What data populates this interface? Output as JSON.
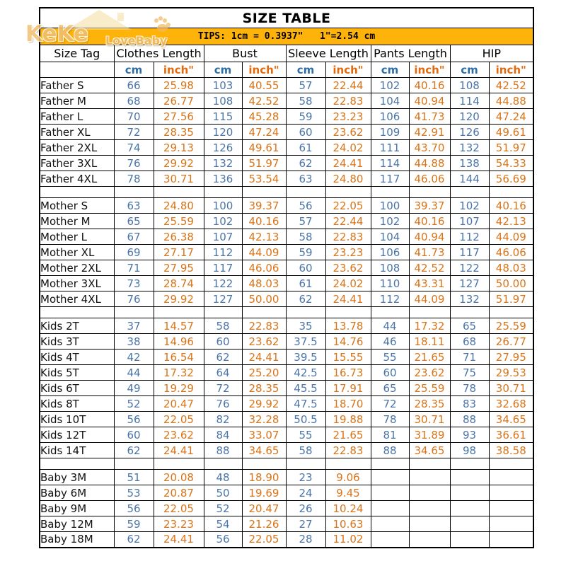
{
  "title": "SIZE TABLE",
  "tips": "TIPS: 1cm = 0.3937\"   1\"=2.54 cm",
  "watermark": {
    "brand_top": "KeKe",
    "brand_bottom": "LoveBaby"
  },
  "colors": {
    "banner_yellow": "#FEB30A",
    "cm_header_blue": "#2E6DA4",
    "cm_value_blue": "#4A74A8",
    "inch_header_orange": "#E2690D",
    "inch_value_orange": "#D97418",
    "border_black": "#000000",
    "watermark_tan": "#F0B85F"
  },
  "columns": {
    "size_tag": "Size Tag",
    "unit_cm": "cm",
    "unit_inch": "inch\"",
    "groups": [
      {
        "label": "Clothes Length"
      },
      {
        "label": "Bust"
      },
      {
        "label": "Sleeve Length"
      },
      {
        "label": "Pants Length"
      },
      {
        "label": "HIP"
      }
    ]
  },
  "sections": [
    {
      "name": "Father",
      "rows": [
        {
          "tag": "Father S",
          "values": [
            "66",
            "25.98",
            "103",
            "40.55",
            "57",
            "22.44",
            "102",
            "40.16",
            "108",
            "42.52"
          ]
        },
        {
          "tag": "Father M",
          "values": [
            "68",
            "26.77",
            "108",
            "42.52",
            "58",
            "22.83",
            "104",
            "40.94",
            "114",
            "44.88"
          ]
        },
        {
          "tag": "Father L",
          "values": [
            "70",
            "27.56",
            "115",
            "45.28",
            "59",
            "23.23",
            "106",
            "41.73",
            "120",
            "47.24"
          ]
        },
        {
          "tag": "Father XL",
          "values": [
            "72",
            "28.35",
            "120",
            "47.24",
            "60",
            "23.62",
            "109",
            "42.91",
            "126",
            "49.61"
          ]
        },
        {
          "tag": "Father 2XL",
          "values": [
            "74",
            "29.13",
            "126",
            "49.61",
            "61",
            "24.02",
            "111",
            "43.70",
            "132",
            "51.97"
          ]
        },
        {
          "tag": "Father 3XL",
          "values": [
            "76",
            "29.92",
            "132",
            "51.97",
            "62",
            "24.41",
            "114",
            "44.88",
            "138",
            "54.33"
          ]
        },
        {
          "tag": "Father 4XL",
          "values": [
            "78",
            "30.71",
            "136",
            "53.54",
            "63",
            "24.80",
            "117",
            "46.06",
            "144",
            "56.69"
          ]
        }
      ]
    },
    {
      "name": "Mother",
      "rows": [
        {
          "tag": "Mother S",
          "values": [
            "63",
            "24.80",
            "100",
            "39.37",
            "56",
            "22.05",
            "100",
            "39.37",
            "102",
            "40.16"
          ]
        },
        {
          "tag": "Mother M",
          "values": [
            "65",
            "25.59",
            "102",
            "40.16",
            "57",
            "22.44",
            "102",
            "40.16",
            "107",
            "42.13"
          ]
        },
        {
          "tag": "Mother L",
          "values": [
            "67",
            "26.38",
            "107",
            "42.13",
            "58",
            "22.83",
            "104",
            "40.94",
            "112",
            "44.09"
          ]
        },
        {
          "tag": "Mother XL",
          "values": [
            "69",
            "27.17",
            "112",
            "44.09",
            "59",
            "23.23",
            "106",
            "41.73",
            "117",
            "46.06"
          ]
        },
        {
          "tag": "Mother 2XL",
          "values": [
            "71",
            "27.95",
            "117",
            "46.06",
            "60",
            "23.62",
            "108",
            "42.52",
            "122",
            "48.03"
          ]
        },
        {
          "tag": "Mother 3XL",
          "values": [
            "73",
            "28.74",
            "122",
            "48.03",
            "61",
            "24.02",
            "110",
            "43.31",
            "127",
            "50.00"
          ]
        },
        {
          "tag": "Mother 4XL",
          "values": [
            "76",
            "29.92",
            "127",
            "50.00",
            "62",
            "24.41",
            "112",
            "44.09",
            "132",
            "51.97"
          ]
        }
      ]
    },
    {
      "name": "Kids",
      "rows": [
        {
          "tag": "Kids 2T",
          "values": [
            "37",
            "14.57",
            "58",
            "22.83",
            "35",
            "13.78",
            "44",
            "17.32",
            "65",
            "25.59"
          ]
        },
        {
          "tag": "Kids 3T",
          "values": [
            "38",
            "14.96",
            "60",
            "23.62",
            "37.5",
            "14.76",
            "46",
            "18.11",
            "68",
            "26.77"
          ]
        },
        {
          "tag": "Kids 4T",
          "values": [
            "42",
            "16.54",
            "62",
            "24.41",
            "39.5",
            "15.55",
            "55",
            "21.65",
            "71",
            "27.95"
          ]
        },
        {
          "tag": "Kids 5T",
          "values": [
            "44",
            "17.32",
            "64",
            "25.20",
            "42.5",
            "16.73",
            "60",
            "23.62",
            "75",
            "29.53"
          ]
        },
        {
          "tag": "Kids 6T",
          "values": [
            "49",
            "19.29",
            "72",
            "28.35",
            "45.5",
            "17.91",
            "65",
            "25.59",
            "78",
            "30.71"
          ]
        },
        {
          "tag": "Kids 8T",
          "values": [
            "52",
            "20.47",
            "76",
            "29.92",
            "47.5",
            "18.70",
            "72",
            "28.35",
            "83",
            "32.68"
          ]
        },
        {
          "tag": "Kids 10T",
          "values": [
            "56",
            "22.05",
            "82",
            "32.28",
            "50.5",
            "19.88",
            "78",
            "30.71",
            "88",
            "34.65"
          ]
        },
        {
          "tag": "Kids 12T",
          "values": [
            "60",
            "23.62",
            "84",
            "33.07",
            "55",
            "21.65",
            "81",
            "31.89",
            "93",
            "36.61"
          ]
        },
        {
          "tag": "Kids 14T",
          "values": [
            "62",
            "24.41",
            "88",
            "34.65",
            "58",
            "22.83",
            "88",
            "34.65",
            "98",
            "38.58"
          ]
        }
      ]
    },
    {
      "name": "Baby",
      "rows": [
        {
          "tag": "Baby 3M",
          "values": [
            "51",
            "20.08",
            "48",
            "18.90",
            "23",
            "9.06",
            "",
            "",
            "",
            ""
          ]
        },
        {
          "tag": "Baby 6M",
          "values": [
            "53",
            "20.87",
            "50",
            "19.69",
            "24",
            "9.45",
            "",
            "",
            "",
            ""
          ]
        },
        {
          "tag": "Baby 9M",
          "values": [
            "56",
            "22.05",
            "52",
            "20.47",
            "26",
            "10.24",
            "",
            "",
            "",
            ""
          ]
        },
        {
          "tag": "Baby 12M",
          "values": [
            "59",
            "23.23",
            "54",
            "21.26",
            "27",
            "10.63",
            "",
            "",
            "",
            ""
          ]
        },
        {
          "tag": "Baby 18M",
          "values": [
            "62",
            "24.41",
            "56",
            "22.05",
            "28",
            "11.02",
            "",
            "",
            "",
            ""
          ]
        }
      ]
    }
  ]
}
